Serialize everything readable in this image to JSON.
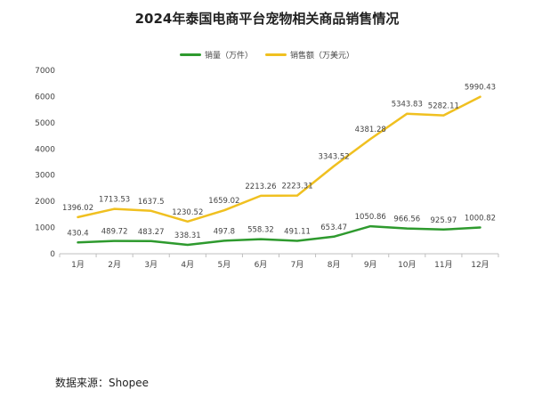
{
  "chart_data": {
    "type": "line",
    "title": "2024年泰国电商平台宠物相关商品销售情况",
    "categories": [
      "1月",
      "2月",
      "3月",
      "4月",
      "5月",
      "6月",
      "7月",
      "8月",
      "9月",
      "10月",
      "11月",
      "12月"
    ],
    "series": [
      {
        "name": "销量（万件）",
        "color": "#2e9a2e",
        "values": [
          430.4,
          489.72,
          483.27,
          338.31,
          497.8,
          558.32,
          491.11,
          653.47,
          1050.86,
          966.56,
          925.97,
          1000.82
        ],
        "labels": [
          "430.4",
          "489.72",
          "483.27",
          "338.31",
          "497.8",
          "558.32",
          "491.11",
          "653.47",
          "1050.86",
          "966.56",
          "925.97",
          "1000.82"
        ]
      },
      {
        "name": "销售额（万美元）",
        "color": "#f0c020",
        "values": [
          1396.02,
          1713.53,
          1637.5,
          1230.52,
          1659.02,
          2213.26,
          2223.31,
          3343.52,
          4381.28,
          5343.83,
          5282.11,
          5990.43
        ],
        "labels": [
          "1396.02",
          "1713.53",
          "1637.5",
          "1230.52",
          "1659.02",
          "2213.26",
          "2223.31",
          "3343.52",
          "4381.28",
          "5343.83",
          "5282.11",
          "5990.43"
        ]
      }
    ],
    "ylim": [
      0,
      7000
    ],
    "yticks": [
      0,
      1000,
      2000,
      3000,
      4000,
      5000,
      6000,
      7000
    ],
    "xlabel": "",
    "ylabel": "",
    "grid": false,
    "legend": "top-center"
  },
  "footer": {
    "source_label": "数据来源：",
    "source_value": "Shopee"
  }
}
